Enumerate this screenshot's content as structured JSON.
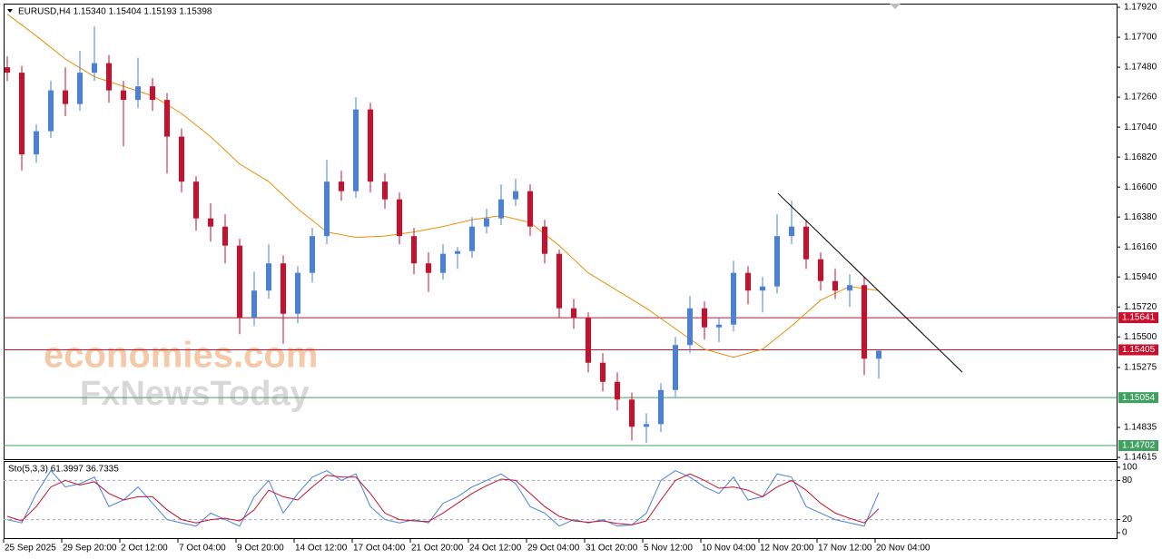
{
  "chart_data": {
    "type": "candlestick",
    "header": "EURUSD,H4  1.15340 1.15404 1.15193 1.15398",
    "watermark": [
      "economies.com",
      "FxNewsToday"
    ],
    "up_color": "#4a80dc",
    "down_color": "#c8102e",
    "open": [
      1.1748,
      1.1744,
      1.1684,
      1.1701,
      1.1731,
      1.1721,
      1.1744,
      1.1751,
      1.1731,
      1.1724,
      1.1734,
      1.1724,
      1.1697,
      1.1664,
      1.1637,
      1.1631,
      1.1617,
      1.1564,
      1.1584,
      1.1604,
      1.1567,
      1.1597,
      1.1624,
      1.1664,
      1.1657,
      1.1717,
      1.1664,
      1.1651,
      1.1624,
      1.1604,
      1.1597,
      1.1611,
      1.1613,
      1.1631,
      1.1637,
      1.1651,
      1.1657,
      1.1631,
      1.1611,
      1.1571,
      1.1564,
      1.1531,
      1.1517,
      1.1504,
      1.1484,
      1.1486,
      1.1511,
      1.1544,
      1.1571,
      1.1557,
      1.1559,
      1.1597,
      1.1584,
      1.1587,
      1.1624,
      1.1631,
      1.1607,
      1.1591,
      1.1584,
      1.1588,
      1.1534
    ],
    "high": [
      1.1756,
      1.1749,
      1.1706,
      1.1738,
      1.1748,
      1.176,
      1.1778,
      1.1757,
      1.1738,
      1.1755,
      1.174,
      1.1729,
      1.1703,
      1.1668,
      1.1648,
      1.164,
      1.1622,
      1.1598,
      1.1618,
      1.161,
      1.1602,
      1.163,
      1.168,
      1.1672,
      1.1726,
      1.1722,
      1.167,
      1.1656,
      1.163,
      1.1612,
      1.1618,
      1.1616,
      1.1638,
      1.1644,
      1.1662,
      1.1666,
      1.1662,
      1.1636,
      1.1614,
      1.1578,
      1.1568,
      1.1538,
      1.1524,
      1.1509,
      1.1494,
      1.1516,
      1.155,
      1.158,
      1.1576,
      1.1564,
      1.1606,
      1.1602,
      1.1594,
      1.164,
      1.165,
      1.1636,
      1.1612,
      1.16,
      1.1596,
      1.1594,
      1.15404
    ],
    "low": [
      1.1738,
      1.1672,
      1.1678,
      1.1696,
      1.1712,
      1.1716,
      1.1738,
      1.1722,
      1.169,
      1.1718,
      1.1716,
      1.167,
      1.1656,
      1.1628,
      1.162,
      1.1604,
      1.1552,
      1.1558,
      1.1578,
      1.1545,
      1.156,
      1.159,
      1.1618,
      1.165,
      1.1652,
      1.1656,
      1.1644,
      1.1618,
      1.1596,
      1.1583,
      1.1592,
      1.16,
      1.1608,
      1.1626,
      1.1632,
      1.1646,
      1.1624,
      1.1604,
      1.1564,
      1.1556,
      1.1524,
      1.151,
      1.1496,
      1.1474,
      1.1472,
      1.148,
      1.1506,
      1.1538,
      1.1548,
      1.1546,
      1.1554,
      1.1574,
      1.1568,
      1.1582,
      1.1618,
      1.16,
      1.1584,
      1.1578,
      1.1572,
      1.1522,
      1.15193
    ],
    "close": [
      1.1744,
      1.1684,
      1.1701,
      1.1731,
      1.1721,
      1.1744,
      1.1751,
      1.1731,
      1.1724,
      1.1734,
      1.1724,
      1.1697,
      1.1664,
      1.1637,
      1.1631,
      1.1617,
      1.1564,
      1.1584,
      1.1604,
      1.1567,
      1.1597,
      1.1624,
      1.1664,
      1.1657,
      1.1717,
      1.1664,
      1.1651,
      1.1624,
      1.1604,
      1.1597,
      1.1611,
      1.1613,
      1.1631,
      1.1637,
      1.1651,
      1.1657,
      1.1631,
      1.1611,
      1.1571,
      1.1564,
      1.1531,
      1.1517,
      1.1504,
      1.1484,
      1.1486,
      1.1511,
      1.1544,
      1.1571,
      1.1557,
      1.1559,
      1.1597,
      1.1584,
      1.1587,
      1.1624,
      1.1631,
      1.1607,
      1.1591,
      1.1584,
      1.1588,
      1.1534,
      1.15398
    ],
    "moving_average": {
      "color": "#e8900c",
      "values": [
        1.1787,
        1.1779,
        1.1771,
        1.17625,
        1.1754,
        1.17475,
        1.1741,
        1.17375,
        1.1734,
        1.17305,
        1.1727,
        1.17205,
        1.1714,
        1.17055,
        1.1697,
        1.1687,
        1.1677,
        1.16705,
        1.1664,
        1.1654,
        1.1644,
        1.16355,
        1.1627,
        1.1625,
        1.1623,
        1.16235,
        1.1624,
        1.16255,
        1.1627,
        1.1629,
        1.1631,
        1.16335,
        1.1636,
        1.16375,
        1.1639,
        1.16365,
        1.1634,
        1.16255,
        1.1617,
        1.1607,
        1.1597,
        1.15905,
        1.1584,
        1.15775,
        1.1571,
        1.15635,
        1.1556,
        1.15485,
        1.1541,
        1.1538,
        1.1535,
        1.1538,
        1.1541,
        1.15495,
        1.1558,
        1.15675,
        1.1577,
        1.1582,
        1.1587,
        1.15855,
        1.1584
      ]
    },
    "trendline": {
      "x": [
        53.06,
        65.75
      ],
      "y": [
        1.16554,
        1.15241
      ],
      "color": "#000000"
    },
    "levels": [
      {
        "value": 1.15641,
        "color": "#c8102e"
      },
      {
        "value": 1.15405,
        "color": "#c8102e"
      },
      {
        "value": 1.15054,
        "color": "#3fa060"
      },
      {
        "value": 1.14702,
        "color": "#3fa060"
      }
    ],
    "ylim": [
      1.14602,
      1.17947
    ],
    "yticks": [
      {
        "value": 1.1792,
        "label": "1.17920"
      },
      {
        "value": 1.177,
        "label": "1.17700"
      },
      {
        "value": 1.1748,
        "label": "1.17480"
      },
      {
        "value": 1.1726,
        "label": "1.17260"
      },
      {
        "value": 1.1704,
        "label": "1.17040"
      },
      {
        "value": 1.1682,
        "label": "1.16820"
      },
      {
        "value": 1.166,
        "label": "1.16600"
      },
      {
        "value": 1.1638,
        "label": "1.16380"
      },
      {
        "value": 1.1616,
        "label": "1.16160"
      },
      {
        "value": 1.1594,
        "label": "1.15940"
      },
      {
        "value": 1.1572,
        "label": "1.15720"
      },
      {
        "value": 1.155,
        "label": "1.15500"
      },
      1.15275,
      1.14835,
      1.14615
    ],
    "x_labels": [
      "25 Sep 2025",
      "29 Sep 20:00",
      "2 Oct 12:00",
      "7 Oct 04:00",
      "9 Oct 20:00",
      "14 Oct 12:00",
      "17 Oct 04:00",
      "21 Oct 20:00",
      "24 Oct 12:00",
      "29 Oct 04:00",
      "31 Oct 20:00",
      "5 Nov 12:00",
      "10 Nov 04:00",
      "12 Nov 20:00",
      "17 Nov 12:00",
      "20 Nov 04:00"
    ],
    "stochastic": {
      "header": "Sto(5,3,3) 61.3997 36.7335",
      "ylim": [
        0,
        100
      ],
      "yticks": [
        100,
        80,
        20,
        0
      ],
      "levels": [
        80,
        20
      ],
      "series": [
        {
          "name": "Main",
          "color": "#4a80dc",
          "values": [
            20,
            15,
            60,
            95,
            70,
            75,
            85,
            40,
            50,
            70,
            45,
            20,
            15,
            10,
            30,
            20,
            10,
            55,
            80,
            30,
            60,
            85,
            95,
            80,
            90,
            40,
            20,
            15,
            20,
            15,
            45,
            55,
            70,
            80,
            90,
            75,
            40,
            30,
            10,
            20,
            15,
            20,
            10,
            12,
            30,
            80,
            95,
            85,
            70,
            60,
            85,
            50,
            55,
            90,
            85,
            40,
            30,
            20,
            15,
            10,
            61.3997
          ]
        },
        {
          "name": "Signal",
          "color": "#c8102e",
          "values": [
            25,
            18,
            40,
            70,
            80,
            73,
            78,
            60,
            50,
            55,
            55,
            35,
            20,
            15,
            20,
            22,
            18,
            35,
            65,
            55,
            50,
            70,
            88,
            85,
            85,
            60,
            30,
            20,
            18,
            17,
            30,
            45,
            60,
            72,
            82,
            80,
            60,
            40,
            25,
            18,
            16,
            18,
            14,
            12,
            18,
            50,
            80,
            90,
            80,
            68,
            70,
            65,
            55,
            70,
            80,
            65,
            45,
            30,
            22,
            15,
            36.7335
          ]
        }
      ]
    }
  }
}
